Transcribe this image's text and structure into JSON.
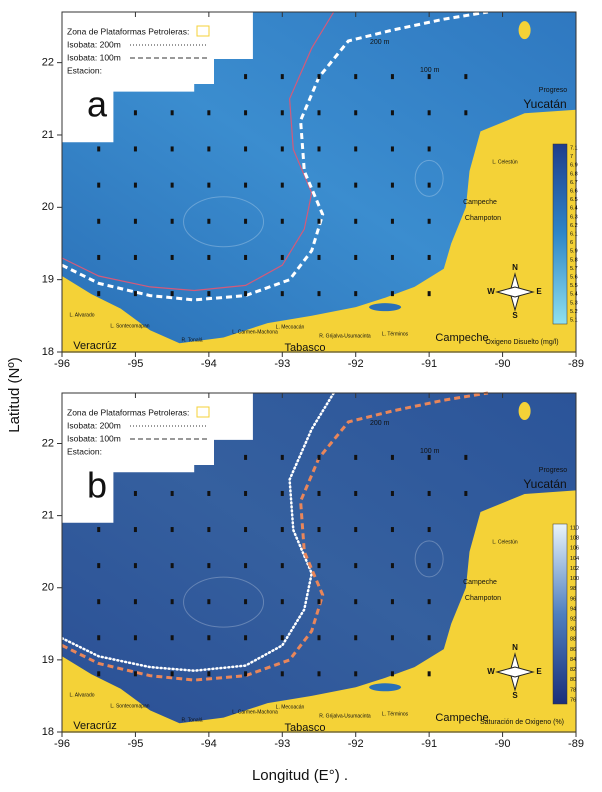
{
  "axes": {
    "x_label": "Longitud (E°) .",
    "y_label": "Latitud (Nº)",
    "x_ticks": [
      "-96",
      "-95",
      "-94",
      "-93",
      "-92",
      "-91",
      "-90",
      "-89"
    ],
    "y_ticks": [
      "18",
      "19",
      "20",
      "21",
      "22"
    ]
  },
  "panels": [
    {
      "letter": "a",
      "legend": [
        "Zona de Plataformas Petroleras:",
        "Isobata: 200m",
        "Isobata: 100m",
        "Estacion:"
      ],
      "isobath_labels": [
        "200 m",
        "100 m"
      ],
      "places": [
        "Progreso",
        "Yucatán",
        "Campeche",
        "Champoton",
        "Veracrúz",
        "Tabasco",
        "Campeche",
        "L. Alvarado",
        "L. Sontecomapan",
        "R. Tonalá",
        "L. Carmen-Machona",
        "L. Mecoacán",
        "R. Grijalva-Usumacinta",
        "L. Términos",
        "L. Celestún"
      ],
      "compass": [
        "N",
        "S",
        "E",
        "W"
      ],
      "colorbar": {
        "title": "Oxigeno Disuelto (mg/l)",
        "labels": [
          "7.1",
          "7",
          "6.9",
          "6.8",
          "6.7",
          "6.6",
          "6.5",
          "6.4",
          "6.3",
          "6.2",
          "6.1",
          "6",
          "5.9",
          "5.8",
          "5.7",
          "5.6",
          "5.5",
          "5.4",
          "5.3",
          "5.2",
          "5.1"
        ]
      }
    },
    {
      "letter": "b",
      "legend": [
        "Zona de Plataformas Petroleras:",
        "Isobata: 200m",
        "Isobata: 100m",
        "Estacion:"
      ],
      "isobath_labels": [
        "200 m",
        "100 m"
      ],
      "places": [
        "Progreso",
        "Yucatán",
        "Campeche",
        "Champoton",
        "Veracrúz",
        "Tabasco",
        "Campeche",
        "L. Alvarado",
        "L. Sontecomapan",
        "R. Tonalá",
        "L. Carmen-Machona",
        "L. Mecoacán",
        "R. Grijalva-Usumacinta",
        "L. Términos",
        "L. Celestún"
      ],
      "compass": [
        "N",
        "S",
        "E",
        "W"
      ],
      "colorbar": {
        "title": "Saturación de Oxigeno (%)",
        "labels": [
          "110",
          "108",
          "106",
          "104",
          "102",
          "100",
          "98",
          "96",
          "94",
          "92",
          "90",
          "88",
          "86",
          "84",
          "82",
          "80",
          "78",
          "76"
        ]
      }
    }
  ]
}
